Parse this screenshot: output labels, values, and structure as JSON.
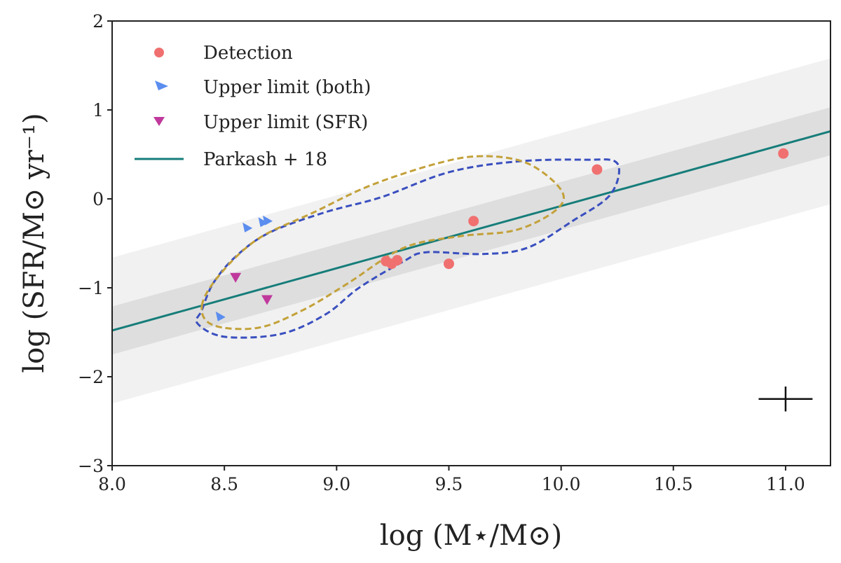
{
  "chart_data": {
    "type": "scatter",
    "xlabel": "log (M⋆/M⊙)",
    "ylabel": "log (SFR/M⊙ yr⁻¹)",
    "xlim": [
      8.0,
      11.2
    ],
    "ylim": [
      -3,
      2
    ],
    "x_ticks": [
      8.0,
      8.5,
      9.0,
      9.5,
      10.0,
      10.5,
      11.0
    ],
    "x_tick_labels": [
      "8.0",
      "8.5",
      "9.0",
      "9.5",
      "10.0",
      "10.5",
      "11.0"
    ],
    "y_ticks": [
      -3,
      -2,
      -1,
      0,
      1,
      2
    ],
    "y_tick_labels": [
      "−3",
      "−2",
      "−1",
      "0",
      "1",
      "2"
    ],
    "grid": false,
    "legend_position": "top-left",
    "series": [
      {
        "name": "Detection",
        "marker": "circle",
        "color": "#f07070",
        "points": [
          {
            "x": 9.22,
            "y": -0.7
          },
          {
            "x": 9.245,
            "y": -0.73
          },
          {
            "x": 9.27,
            "y": -0.69
          },
          {
            "x": 9.5,
            "y": -0.73
          },
          {
            "x": 9.61,
            "y": -0.25
          },
          {
            "x": 10.16,
            "y": 0.33
          },
          {
            "x": 10.99,
            "y": 0.51
          }
        ]
      },
      {
        "name": "Upper limit (both)",
        "marker": "triangle-left-down",
        "color": "#5b8def",
        "points": [
          {
            "x": 8.6,
            "y": -0.33
          },
          {
            "x": 8.67,
            "y": -0.27
          },
          {
            "x": 8.69,
            "y": -0.25
          },
          {
            "x": 8.48,
            "y": -1.33
          }
        ]
      },
      {
        "name": "Upper limit (SFR)",
        "marker": "triangle-down",
        "color": "#c0399c",
        "points": [
          {
            "x": 8.55,
            "y": -0.88
          },
          {
            "x": 8.69,
            "y": -1.13
          }
        ]
      },
      {
        "name": "Parkash + 18",
        "type": "line",
        "color": "#167d7a",
        "slope": 0.7,
        "intercept_at_8": -1.48,
        "band_inner_halfwidth": 0.27,
        "band_outer_halfwidth": 0.82
      }
    ],
    "contours": [
      {
        "name": "blue-dashed-contour",
        "color": "#3a4fbf",
        "path": [
          [
            8.4,
            -1.25
          ],
          [
            8.45,
            -0.95
          ],
          [
            8.55,
            -0.65
          ],
          [
            8.7,
            -0.38
          ],
          [
            8.95,
            -0.15
          ],
          [
            9.2,
            0.02
          ],
          [
            9.5,
            0.3
          ],
          [
            9.8,
            0.42
          ],
          [
            10.1,
            0.44
          ],
          [
            10.25,
            0.4
          ],
          [
            10.22,
            0.05
          ],
          [
            10.05,
            -0.25
          ],
          [
            9.85,
            -0.55
          ],
          [
            9.65,
            -0.62
          ],
          [
            9.4,
            -0.6
          ],
          [
            9.3,
            -0.7
          ],
          [
            9.1,
            -1.0
          ],
          [
            8.95,
            -1.3
          ],
          [
            8.75,
            -1.52
          ],
          [
            8.5,
            -1.55
          ],
          [
            8.38,
            -1.4
          ]
        ]
      },
      {
        "name": "gold-dashed-contour",
        "color": "#c3a13a",
        "path": [
          [
            8.4,
            -1.2
          ],
          [
            8.48,
            -0.85
          ],
          [
            8.65,
            -0.45
          ],
          [
            8.9,
            -0.15
          ],
          [
            9.15,
            0.15
          ],
          [
            9.45,
            0.4
          ],
          [
            9.65,
            0.48
          ],
          [
            9.85,
            0.4
          ],
          [
            10.0,
            0.1
          ],
          [
            9.98,
            -0.12
          ],
          [
            9.8,
            -0.35
          ],
          [
            9.55,
            -0.42
          ],
          [
            9.3,
            -0.55
          ],
          [
            9.05,
            -0.95
          ],
          [
            8.85,
            -1.25
          ],
          [
            8.65,
            -1.45
          ],
          [
            8.45,
            -1.42
          ]
        ]
      }
    ],
    "error_bar": {
      "x": 11.0,
      "y": -2.25,
      "xerr": 0.12,
      "yerr": 0.14,
      "color": "#111111"
    }
  }
}
